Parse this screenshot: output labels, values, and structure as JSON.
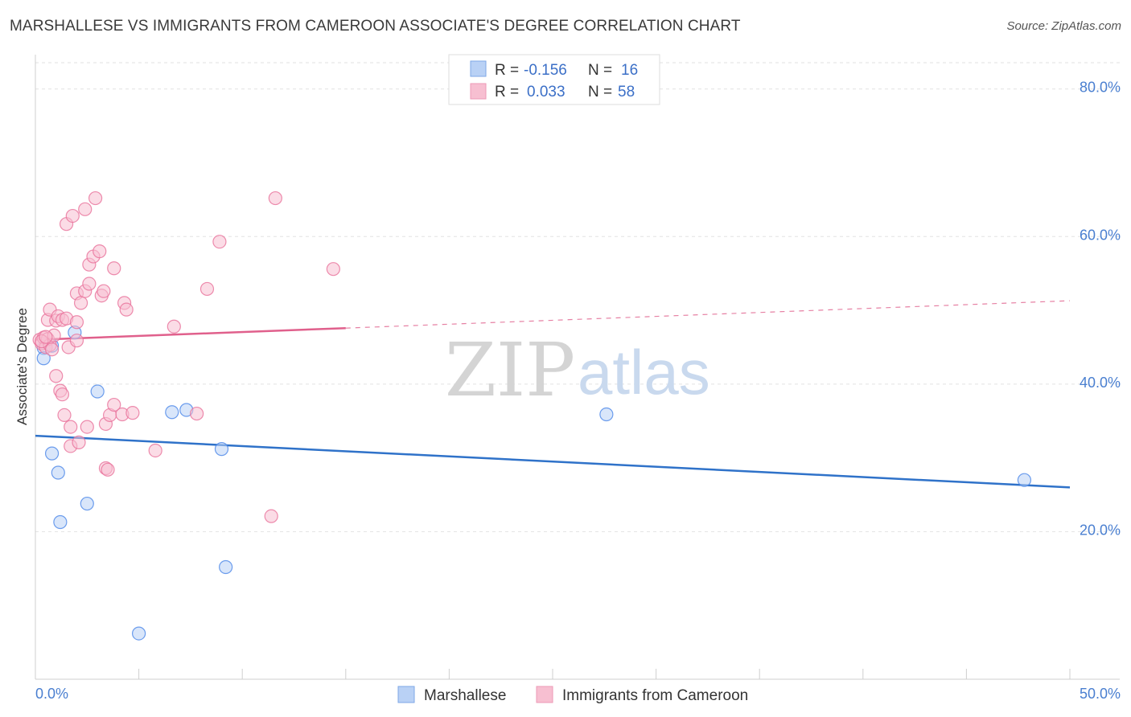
{
  "header": {
    "title": "MARSHALLESE VS IMMIGRANTS FROM CAMEROON ASSOCIATE'S DEGREE CORRELATION CHART",
    "source": "Source: ZipAtlas.com"
  },
  "watermark": {
    "zip": "ZIP",
    "atlas": "atlas"
  },
  "colors": {
    "blue": "#4a86e8",
    "blue_fill": "#b9d1f5",
    "pink": "#e8709a",
    "pink_fill": "#f7bfd1",
    "blue_line": "#2f72c9",
    "pink_line": "#e0608c",
    "tick_text": "#4a7fd0"
  },
  "legend": {
    "r_label": "R =",
    "n_label": "N =",
    "blue": {
      "r": "-0.156",
      "n": "16"
    },
    "pink": {
      "r": "0.033",
      "n": "58"
    }
  },
  "bottom_legend": [
    "Marshallese",
    "Immigrants from Cameroon"
  ],
  "chart_data": {
    "type": "scatter",
    "title": "MARSHALLESE VS IMMIGRANTS FROM CAMEROON ASSOCIATE'S DEGREE CORRELATION CHART",
    "xlabel": "",
    "ylabel": "Associate's Degree",
    "xlim": [
      0,
      50
    ],
    "ylim": [
      0,
      84
    ],
    "x_tick_labels": [
      {
        "value": 0,
        "label": "0.0%"
      },
      {
        "value": 50,
        "label": "50.0%"
      }
    ],
    "y_ticks": [
      {
        "value": 20,
        "label": "20.0%"
      },
      {
        "value": 40,
        "label": "40.0%"
      },
      {
        "value": 60,
        "label": "60.0%"
      },
      {
        "value": 80,
        "label": "80.0%"
      }
    ],
    "series": [
      {
        "name": "Marshallese",
        "color": "blue",
        "points": [
          [
            0.4,
            44.9
          ],
          [
            0.4,
            43.5
          ],
          [
            0.8,
            45.2
          ],
          [
            1.9,
            47.0
          ],
          [
            0.8,
            30.6
          ],
          [
            1.1,
            28.0
          ],
          [
            1.2,
            21.3
          ],
          [
            2.5,
            23.8
          ],
          [
            3.0,
            39.0
          ],
          [
            6.6,
            36.2
          ],
          [
            7.3,
            36.5
          ],
          [
            9.0,
            31.2
          ],
          [
            9.2,
            15.2
          ],
          [
            5.0,
            6.2
          ],
          [
            27.6,
            35.9
          ],
          [
            47.8,
            27.0
          ]
        ],
        "trend": {
          "x": [
            0,
            50
          ],
          "y": [
            33.0,
            26.0
          ],
          "dashed_from": null
        }
      },
      {
        "name": "Immigrants from Cameroon",
        "color": "pink",
        "points": [
          [
            0.2,
            46.0
          ],
          [
            0.3,
            45.5
          ],
          [
            0.4,
            46.3
          ],
          [
            0.5,
            45.0
          ],
          [
            0.6,
            46.1
          ],
          [
            0.7,
            45.3
          ],
          [
            0.8,
            44.7
          ],
          [
            0.9,
            46.6
          ],
          [
            0.6,
            48.7
          ],
          [
            0.7,
            50.1
          ],
          [
            1.0,
            48.6
          ],
          [
            1.1,
            49.2
          ],
          [
            1.3,
            48.7
          ],
          [
            1.5,
            48.9
          ],
          [
            2.0,
            48.4
          ],
          [
            1.6,
            45.0
          ],
          [
            2.0,
            45.9
          ],
          [
            1.0,
            41.1
          ],
          [
            1.2,
            39.1
          ],
          [
            1.3,
            38.6
          ],
          [
            1.4,
            35.8
          ],
          [
            1.7,
            34.2
          ],
          [
            1.7,
            31.6
          ],
          [
            2.1,
            32.1
          ],
          [
            2.5,
            34.2
          ],
          [
            3.4,
            34.6
          ],
          [
            3.6,
            35.8
          ],
          [
            3.8,
            37.2
          ],
          [
            4.2,
            35.9
          ],
          [
            4.7,
            36.1
          ],
          [
            3.4,
            28.6
          ],
          [
            3.5,
            28.4
          ],
          [
            5.8,
            31.0
          ],
          [
            6.7,
            47.8
          ],
          [
            2.0,
            52.3
          ],
          [
            2.2,
            51.0
          ],
          [
            2.4,
            52.6
          ],
          [
            2.6,
            53.6
          ],
          [
            3.2,
            52.0
          ],
          [
            3.3,
            52.6
          ],
          [
            3.8,
            55.7
          ],
          [
            4.3,
            51.0
          ],
          [
            4.4,
            50.1
          ],
          [
            2.6,
            56.2
          ],
          [
            2.8,
            57.3
          ],
          [
            3.1,
            58.0
          ],
          [
            1.5,
            61.7
          ],
          [
            1.8,
            62.8
          ],
          [
            2.4,
            63.7
          ],
          [
            2.9,
            65.2
          ],
          [
            8.3,
            52.9
          ],
          [
            8.9,
            59.3
          ],
          [
            11.6,
            65.2
          ],
          [
            14.4,
            55.6
          ],
          [
            7.8,
            36.0
          ],
          [
            11.4,
            22.1
          ],
          [
            0.3,
            45.8
          ],
          [
            0.5,
            46.4
          ]
        ],
        "trend": {
          "x": [
            0,
            50
          ],
          "y": [
            46.0,
            51.3
          ],
          "dashed_from": 15
        }
      }
    ]
  }
}
